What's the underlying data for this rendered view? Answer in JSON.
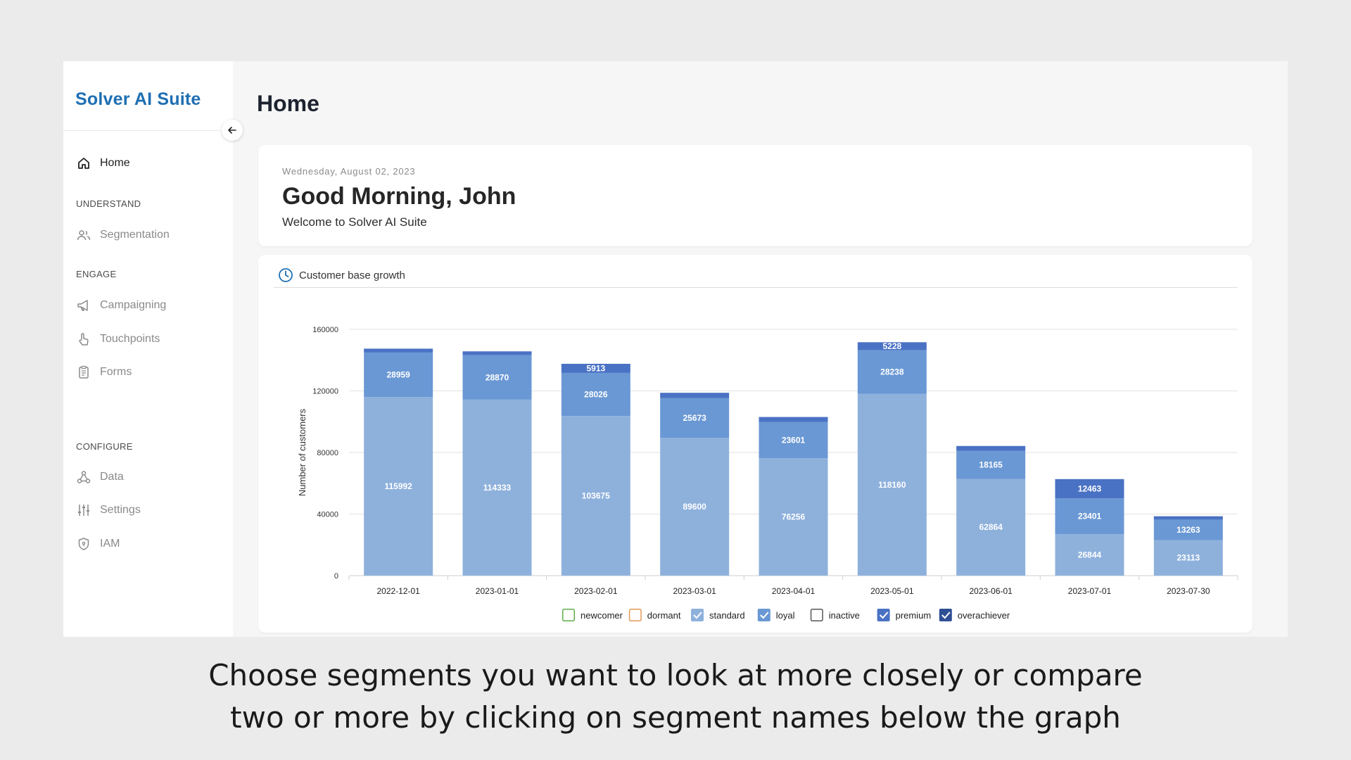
{
  "sidebar": {
    "brand": "Solver AI Suite",
    "items": [
      {
        "label": "Home"
      },
      {
        "label": "Segmentation"
      },
      {
        "label": "Campaigning"
      },
      {
        "label": "Touchpoints"
      },
      {
        "label": "Forms"
      },
      {
        "label": "Data"
      },
      {
        "label": "Settings"
      },
      {
        "label": "IAM"
      }
    ],
    "sections": {
      "understand": "UNDERSTAND",
      "engage": "ENGAGE",
      "configure": "CONFIGURE"
    }
  },
  "page": {
    "title": "Home"
  },
  "greeting": {
    "date": "Wednesday, August 02, 2023",
    "title": "Good Morning, John",
    "subtitle": "Welcome to Solver AI Suite"
  },
  "chart_card": {
    "title": "Customer base growth"
  },
  "caption": {
    "line1": "Choose segments you want to look at more closely or compare",
    "line2": "two or more by clicking on segment names below the graph"
  },
  "colors": {
    "brand": "#1f6fb2",
    "standard": "#8eb1dc",
    "loyal": "#6a98d4",
    "premium": "#4a72c4",
    "overachiever": "#2f4f95"
  },
  "chart_data": {
    "type": "bar",
    "stacked": true,
    "ylabel": "Number of customers",
    "ylim": [
      0,
      160000
    ],
    "yticks": [
      0,
      40000,
      80000,
      120000,
      160000
    ],
    "grid": true,
    "legend_position": "bottom",
    "categories": [
      "2022-12-01",
      "2023-01-01",
      "2023-02-01",
      "2023-03-01",
      "2023-04-01",
      "2023-05-01",
      "2023-06-01",
      "2023-07-01",
      "2023-07-30"
    ],
    "series": [
      {
        "name": "standard",
        "values": [
          115992,
          114333,
          103675,
          89600,
          76256,
          118160,
          62864,
          26844,
          23113
        ],
        "show_labels": true
      },
      {
        "name": "loyal",
        "values": [
          28959,
          28870,
          28026,
          25673,
          23601,
          28238,
          18165,
          23401,
          13263
        ],
        "show_labels": true
      },
      {
        "name": "premium",
        "values": [
          2500,
          2500,
          5913,
          3500,
          3200,
          5228,
          3200,
          12463,
          2200
        ],
        "show_labels": [
          false,
          false,
          true,
          false,
          false,
          true,
          false,
          true,
          false
        ]
      }
    ],
    "legend": [
      {
        "name": "newcomer",
        "checked": false,
        "color": "#5fae4b"
      },
      {
        "name": "dormant",
        "checked": false,
        "color": "#e39a57"
      },
      {
        "name": "standard",
        "checked": true,
        "color": "#8eb1dc"
      },
      {
        "name": "loyal",
        "checked": true,
        "color": "#6a98d4"
      },
      {
        "name": "inactive",
        "checked": false,
        "color": "#555555"
      },
      {
        "name": "premium",
        "checked": true,
        "color": "#4a72c4"
      },
      {
        "name": "overachiever",
        "checked": true,
        "color": "#2f4f95"
      }
    ]
  }
}
